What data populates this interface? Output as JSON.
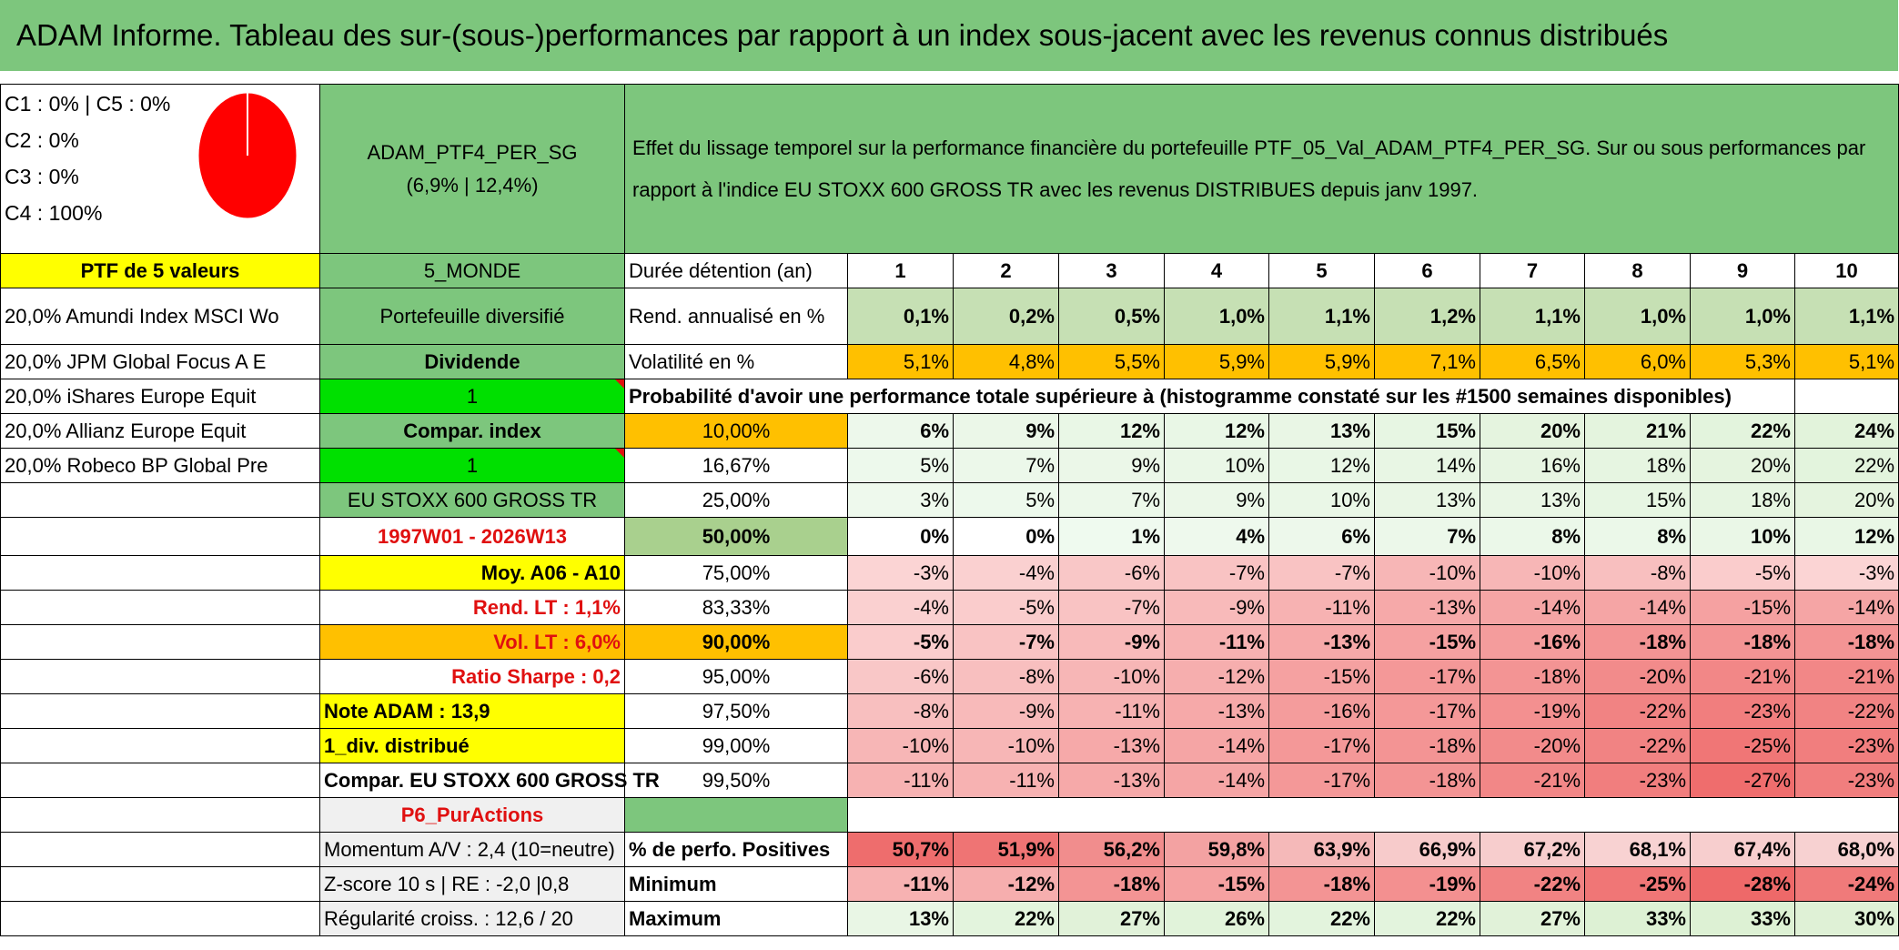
{
  "title": "ADAM Informe. Tableau des sur-(sous-)performances par rapport à un index sous-jacent avec les revenus connus distribués",
  "allocation": {
    "lines": [
      "C1 : 0% | C5 : 0%",
      "C2 : 0%",
      "C3 : 0%",
      "C4 : 100%"
    ],
    "pie_color": "#ff0000",
    "pie_share_c4": 1.0
  },
  "portfolio": {
    "name": "ADAM_PTF4_PER_SG",
    "stats": "(6,9% | 12,4%)",
    "ptf_label": "PTF de 5 valeurs",
    "category": "5_MONDE",
    "holdings": [
      "20,0% Amundi Index MSCI Wo",
      "20,0% JPM Global Focus A E",
      "20,0% iShares Europe Equit",
      "20,0% Allianz Europe Equit",
      "20,0% Robeco BP Global Pre"
    ],
    "type": "Portefeuille diversifié",
    "dividend_label": "Dividende",
    "dividend_value": "1",
    "compar_label": "Compar. index",
    "compar_value": "1",
    "index_name": "EU STOXX 600 GROSS TR",
    "period": "1997W01 - 2026W13",
    "moy": "Moy. A06 - A10",
    "rend_lt": "Rend. LT : 1,1%",
    "vol_lt": "Vol. LT : 6,0%",
    "sharpe": "Ratio Sharpe : 0,2",
    "note": "Note ADAM : 13,9",
    "div": "1_div. distribué",
    "compar_full": "Compar. EU STOXX 600 GROSS TR",
    "p6": "P6_PurActions",
    "momentum": "Momentum A/V : 2,4 (10=neutre)",
    "zscore": "Z-score 10 s | RE : -2,0 |0,8",
    "regularite": "Régularité croiss. : 12,6 / 20"
  },
  "description": "Effet du lissage temporel sur la performance financière du portefeuille PTF_05_Val_ADAM_PTF4_PER_SG. Sur ou sous performances par rapport à l'indice EU STOXX 600 GROSS TR avec les revenus DISTRIBUES depuis janv 1997.",
  "table": {
    "duration_label": "Durée détention (an)",
    "years": [
      "1",
      "2",
      "3",
      "4",
      "5",
      "6",
      "7",
      "8",
      "9",
      "10"
    ],
    "rend_label": "Rend. annualisé en %",
    "rend": [
      "0,1%",
      "0,2%",
      "0,5%",
      "1,0%",
      "1,1%",
      "1,2%",
      "1,1%",
      "1,0%",
      "1,0%",
      "1,1%"
    ],
    "vol_label": "Volatilité en %",
    "vol": [
      "5,1%",
      "4,8%",
      "5,5%",
      "5,9%",
      "5,9%",
      "7,1%",
      "6,5%",
      "6,0%",
      "5,3%",
      "5,1%"
    ],
    "prob_label": "Probabilité d'avoir une performance totale supérieure à (histogramme constaté sur les #1500 semaines disponibles)",
    "quantiles": [
      {
        "q": "10,00%",
        "vals": [
          "6%",
          "9%",
          "12%",
          "12%",
          "13%",
          "15%",
          "20%",
          "21%",
          "22%",
          "24%"
        ]
      },
      {
        "q": "16,67%",
        "vals": [
          "5%",
          "7%",
          "9%",
          "10%",
          "12%",
          "14%",
          "16%",
          "18%",
          "20%",
          "22%"
        ]
      },
      {
        "q": "25,00%",
        "vals": [
          "3%",
          "5%",
          "7%",
          "9%",
          "10%",
          "13%",
          "13%",
          "15%",
          "18%",
          "20%"
        ]
      },
      {
        "q": "50,00%",
        "vals": [
          "0%",
          "0%",
          "1%",
          "4%",
          "6%",
          "7%",
          "8%",
          "8%",
          "10%",
          "12%"
        ]
      },
      {
        "q": "75,00%",
        "vals": [
          "-3%",
          "-4%",
          "-6%",
          "-7%",
          "-7%",
          "-10%",
          "-10%",
          "-8%",
          "-5%",
          "-3%"
        ]
      },
      {
        "q": "83,33%",
        "vals": [
          "-4%",
          "-5%",
          "-7%",
          "-9%",
          "-11%",
          "-13%",
          "-14%",
          "-14%",
          "-15%",
          "-14%"
        ]
      },
      {
        "q": "90,00%",
        "vals": [
          "-5%",
          "-7%",
          "-9%",
          "-11%",
          "-13%",
          "-15%",
          "-16%",
          "-18%",
          "-18%",
          "-18%"
        ]
      },
      {
        "q": "95,00%",
        "vals": [
          "-6%",
          "-8%",
          "-10%",
          "-12%",
          "-15%",
          "-17%",
          "-18%",
          "-20%",
          "-21%",
          "-21%"
        ]
      },
      {
        "q": "97,50%",
        "vals": [
          "-8%",
          "-9%",
          "-11%",
          "-13%",
          "-16%",
          "-17%",
          "-19%",
          "-22%",
          "-23%",
          "-22%"
        ]
      },
      {
        "q": "99,00%",
        "vals": [
          "-10%",
          "-10%",
          "-13%",
          "-14%",
          "-17%",
          "-18%",
          "-20%",
          "-22%",
          "-25%",
          "-23%"
        ]
      },
      {
        "q": "99,50%",
        "vals": [
          "-11%",
          "-11%",
          "-13%",
          "-14%",
          "-17%",
          "-18%",
          "-21%",
          "-23%",
          "-27%",
          "-23%"
        ]
      }
    ],
    "pos_label": "% de perfo. Positives",
    "pos": [
      "50,7%",
      "51,9%",
      "56,2%",
      "59,8%",
      "63,9%",
      "66,9%",
      "67,2%",
      "68,1%",
      "67,4%",
      "68,0%"
    ],
    "min_label": "Minimum",
    "min": [
      "-11%",
      "-12%",
      "-18%",
      "-15%",
      "-18%",
      "-19%",
      "-22%",
      "-25%",
      "-28%",
      "-24%"
    ],
    "max_label": "Maximum",
    "max": [
      "13%",
      "22%",
      "27%",
      "26%",
      "22%",
      "22%",
      "27%",
      "33%",
      "33%",
      "30%"
    ]
  }
}
